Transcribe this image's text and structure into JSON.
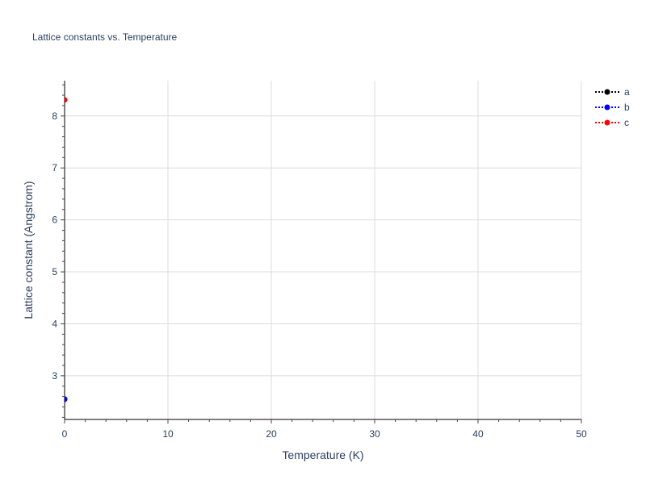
{
  "chart_data": {
    "type": "scatter",
    "title": "Lattice constants vs. Temperature",
    "xlabel": "Temperature (K)",
    "ylabel": "Lattice constant (Angstrom)",
    "xlim": [
      0,
      50
    ],
    "ylim": [
      2.16,
      8.68
    ],
    "xticks": [
      0,
      10,
      20,
      30,
      40,
      50
    ],
    "yticks": [
      3,
      4,
      5,
      6,
      7,
      8
    ],
    "grid": true,
    "legend_position": "top-right",
    "series": [
      {
        "name": "a",
        "color": "#000000",
        "line": "dotted",
        "x": [
          0
        ],
        "y": [
          2.55
        ]
      },
      {
        "name": "b",
        "color": "#0000ff",
        "line": "dotted",
        "x": [
          0
        ],
        "y": [
          2.55
        ]
      },
      {
        "name": "c",
        "color": "#ff0000",
        "line": "dotted",
        "x": [
          0
        ],
        "y": [
          8.31
        ]
      }
    ]
  }
}
